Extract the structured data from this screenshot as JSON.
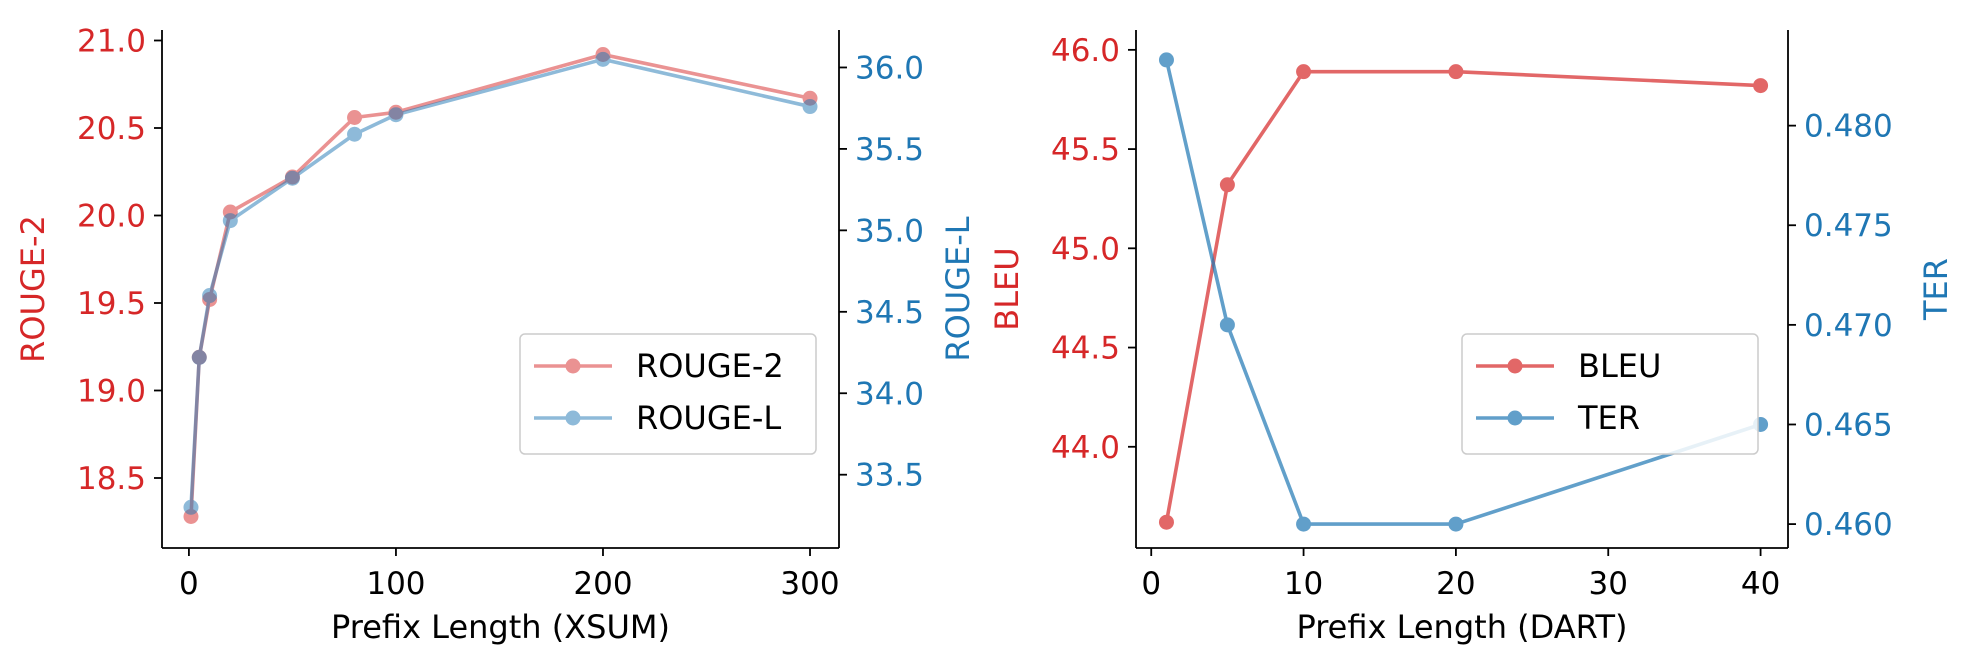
{
  "colors": {
    "red": "#d62728",
    "blue": "#1f77b4",
    "axis": "#000000"
  },
  "chart_data": [
    {
      "type": "line",
      "xlabel": "Prefix Length (XSUM)",
      "x_ticks": [
        0,
        100,
        200,
        300
      ],
      "xlim": [
        -13,
        314
      ],
      "grid": false,
      "legend_position": "center-right",
      "left_axis": {
        "label": "ROUGE-2",
        "color": "#d62728",
        "ticks": [
          "18.5",
          "19.0",
          "19.5",
          "20.0",
          "20.5",
          "21.0"
        ],
        "ylim": [
          18.1,
          21.06
        ]
      },
      "right_axis": {
        "label": "ROUGE-L",
        "color": "#1f77b4",
        "ticks": [
          "33.5",
          "34.0",
          "34.5",
          "35.0",
          "35.5",
          "36.0"
        ],
        "ylim": [
          33.05,
          36.23
        ]
      },
      "series": [
        {
          "name": "ROUGE-2",
          "axis": "left",
          "color": "#d62728",
          "alpha": 0.5,
          "x": [
            1,
            5,
            10,
            20,
            50,
            80,
            100,
            200,
            300
          ],
          "y": [
            18.28,
            19.19,
            19.52,
            20.02,
            20.22,
            20.56,
            20.59,
            20.92,
            20.67
          ]
        },
        {
          "name": "ROUGE-L",
          "axis": "right",
          "color": "#1f77b4",
          "alpha": 0.5,
          "x": [
            1,
            5,
            10,
            20,
            50,
            80,
            100,
            200,
            300
          ],
          "y": [
            33.3,
            34.22,
            34.6,
            35.06,
            35.32,
            35.59,
            35.71,
            36.05,
            35.76
          ]
        }
      ]
    },
    {
      "type": "line",
      "xlabel": "Prefix Length (DART)",
      "x_ticks": [
        0,
        10,
        20,
        30,
        40
      ],
      "xlim": [
        -1,
        41.8
      ],
      "grid": false,
      "legend_position": "center-right",
      "left_axis": {
        "label": "BLEU",
        "color": "#d62728",
        "ticks": [
          "44.0",
          "44.5",
          "45.0",
          "45.5",
          "46.0"
        ],
        "ylim": [
          43.49,
          46.1
        ]
      },
      "right_axis": {
        "label": "TER",
        "color": "#1f77b4",
        "ticks": [
          "0.460",
          "0.465",
          "0.470",
          "0.475",
          "0.480"
        ],
        "ylim": [
          0.4588,
          0.4848
        ]
      },
      "series": [
        {
          "name": "BLEU",
          "axis": "left",
          "color": "#d62728",
          "alpha": 0.7,
          "x": [
            1,
            5,
            10,
            20,
            40
          ],
          "y": [
            43.62,
            45.32,
            45.89,
            45.89,
            45.82
          ]
        },
        {
          "name": "TER",
          "axis": "right",
          "color": "#1f77b4",
          "alpha": 0.7,
          "x": [
            1,
            5,
            10,
            20,
            40
          ],
          "y": [
            0.4833,
            0.47,
            0.46,
            0.46,
            0.465
          ]
        }
      ]
    }
  ]
}
